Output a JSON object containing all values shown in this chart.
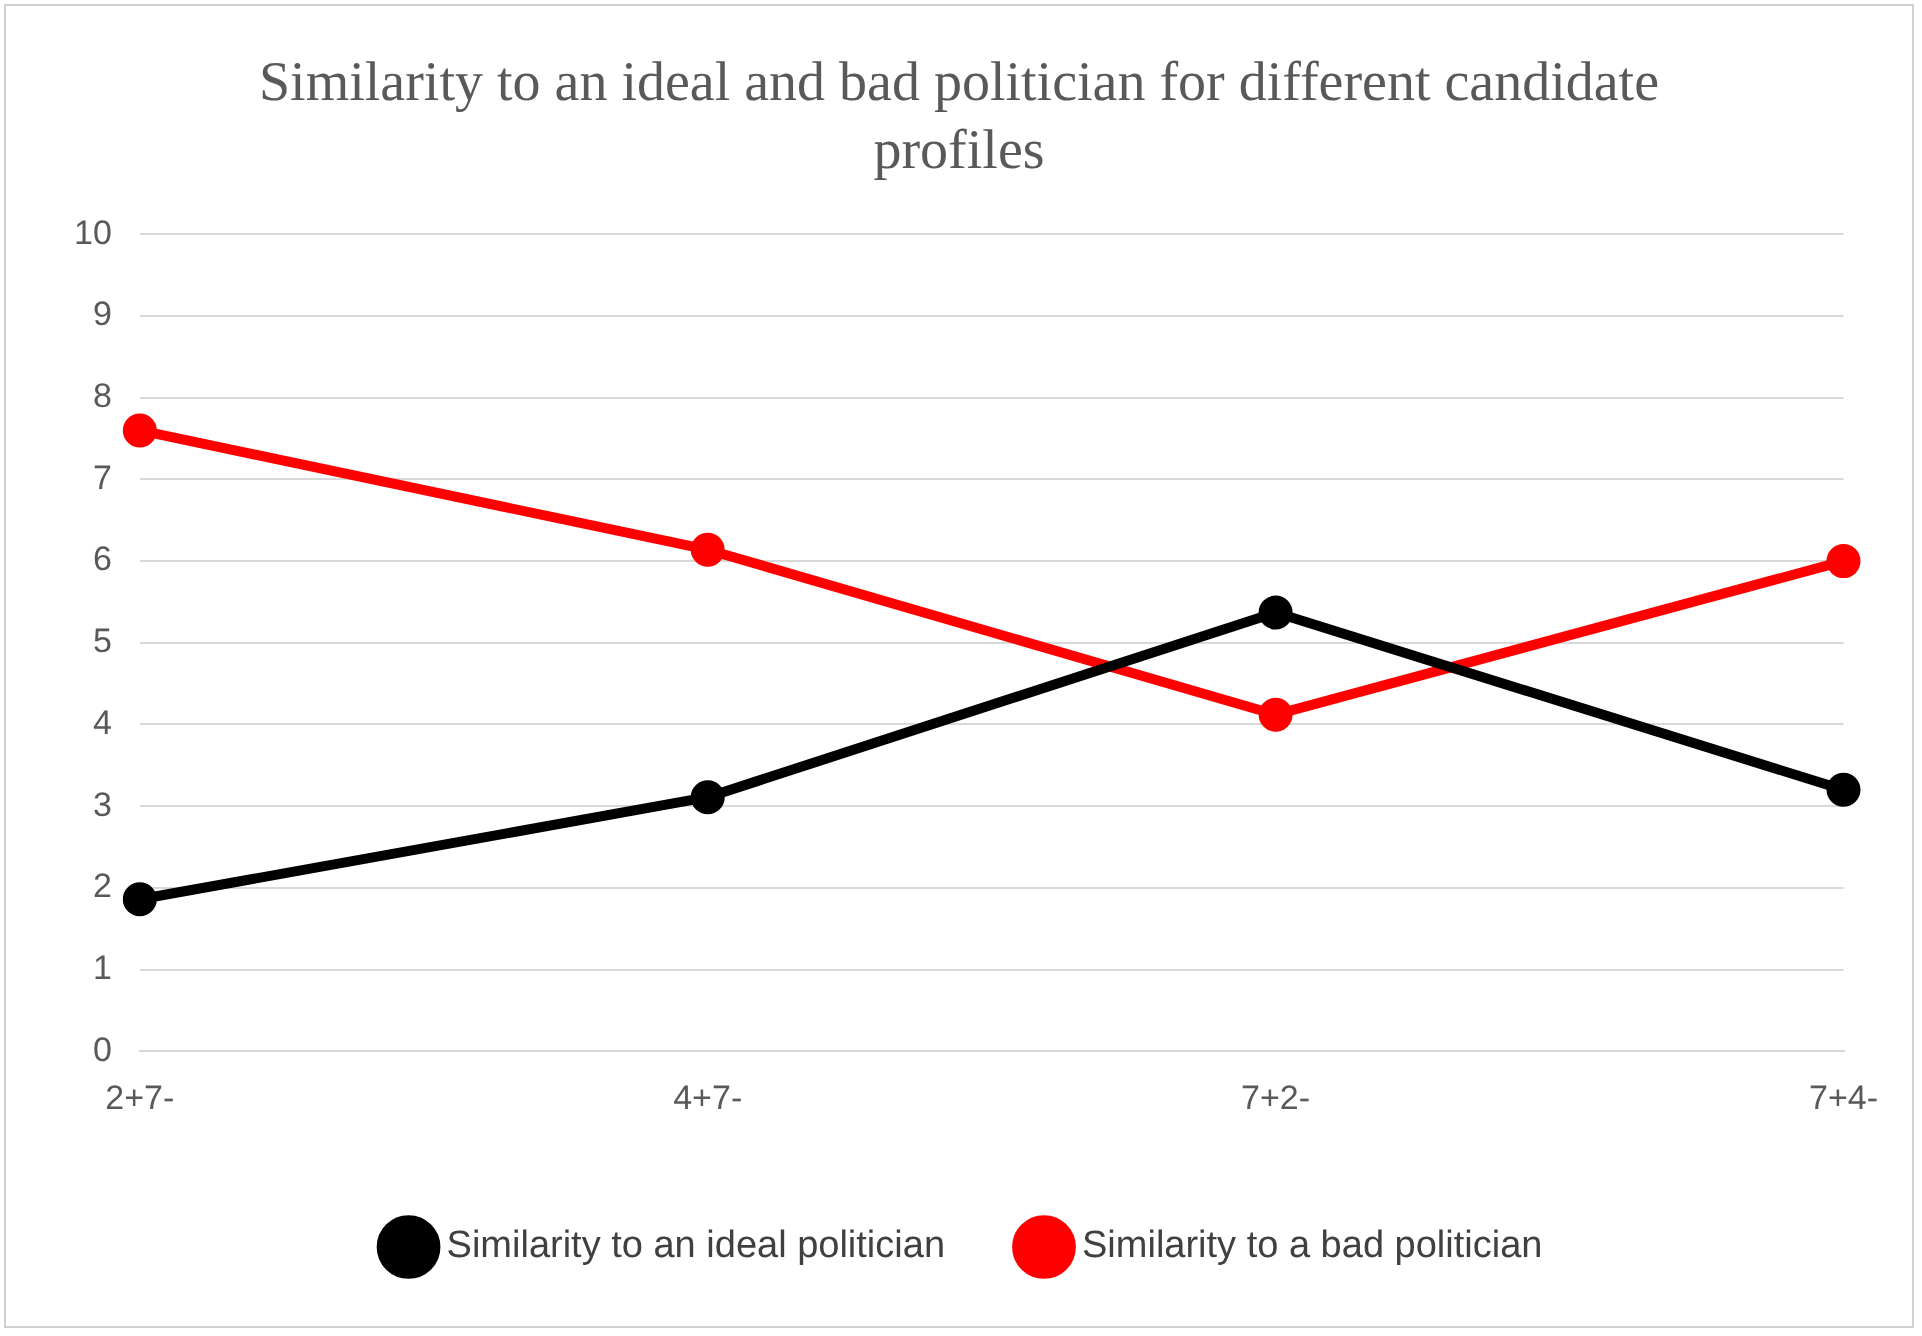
{
  "chart_data": {
    "type": "line",
    "title": "Similarity to an ideal and bad politician for different candidate profiles",
    "categories": [
      "2+7-",
      "4+7-",
      "7+2-",
      "7+4-"
    ],
    "series": [
      {
        "name": "Similarity to an ideal politician",
        "color": "#000000",
        "values": [
          1.86,
          3.11,
          5.37,
          3.2
        ]
      },
      {
        "name": "Similarity to a bad politician",
        "color": "#ff0000",
        "values": [
          7.6,
          6.14,
          4.12,
          6.0
        ]
      }
    ],
    "ylim": [
      0,
      10
    ],
    "yticks": [
      0,
      1,
      2,
      3,
      4,
      5,
      6,
      7,
      8,
      9,
      10
    ],
    "grid": "y",
    "legend": "bottom",
    "marker": "circle",
    "line_style": "solid"
  }
}
